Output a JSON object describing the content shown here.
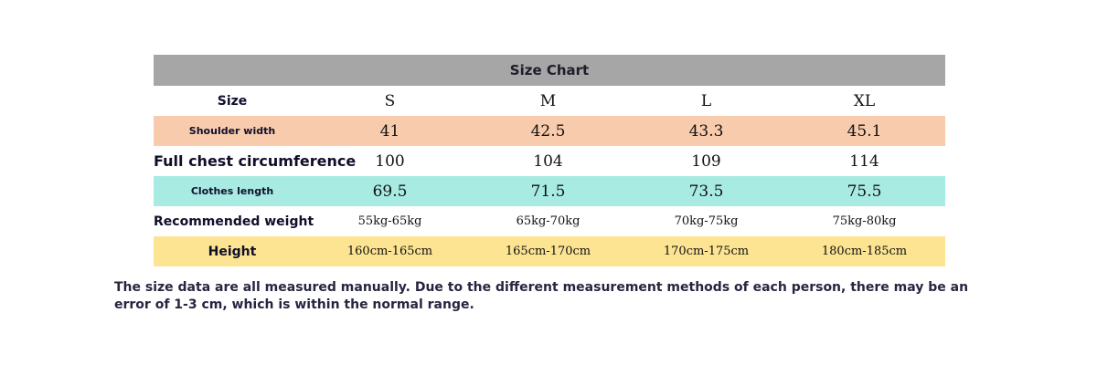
{
  "title": "Size Chart",
  "header": {
    "label": "Size",
    "sizes": [
      "S",
      "M",
      "L",
      "XL"
    ]
  },
  "rows": [
    {
      "label": "Shoulder width",
      "values": [
        "41",
        "42.5",
        "43.3",
        "45.1"
      ]
    },
    {
      "label": "Full chest circumference",
      "values": [
        "100",
        "104",
        "109",
        "114"
      ]
    },
    {
      "label": "Clothes length",
      "values": [
        "69.5",
        "71.5",
        "73.5",
        "75.5"
      ]
    },
    {
      "label": "Recommended weight",
      "values": [
        "55kg-65kg",
        "65kg-70kg",
        "70kg-75kg",
        "75kg-80kg"
      ]
    },
    {
      "label": "Height",
      "values": [
        "160cm-165cm",
        "165cm-170cm",
        "170cm-175cm",
        "180cm-185cm"
      ]
    }
  ],
  "colors": {
    "title_bg": "#a6a6a6",
    "shoulder_bg": "#f8cbad",
    "length_bg": "#a8ebe2",
    "height_bg": "#fde492"
  },
  "note": "The size data are all measured manually. Due to the different measurement methods of each person, there may be an error of 1-3 cm, which is within the normal range."
}
